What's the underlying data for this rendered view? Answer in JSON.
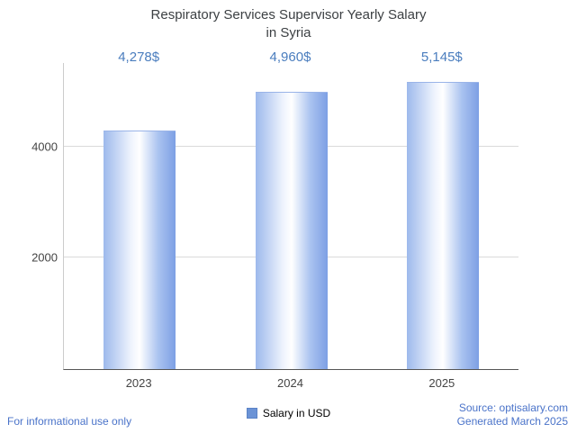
{
  "title": {
    "line1": "Respiratory Services Supervisor Yearly Salary",
    "line2": "in Syria"
  },
  "chart_data": {
    "type": "bar",
    "title": "Respiratory Services Supervisor Yearly Salary in Syria",
    "categories": [
      "2023",
      "2024",
      "2025"
    ],
    "values": [
      4278,
      4960,
      5145
    ],
    "value_labels": [
      "4,278$",
      "4,960$",
      "5,145$"
    ],
    "xlabel": "",
    "ylabel": "",
    "ylim": [
      0,
      5500
    ],
    "yticks": [
      2000,
      4000
    ],
    "grid": true,
    "legend_position": "bottom",
    "legend": [
      "Salary in USD"
    ],
    "bar_gradient": [
      "#9db9ec",
      "#ffffff",
      "#7d9fe4"
    ],
    "value_label_color": "#4a7dbe"
  },
  "legend": {
    "label": "Salary in USD",
    "swatch_color": "#6b93d6"
  },
  "footer": {
    "left": "For informational use only",
    "source": "Source: optisalary.com",
    "generated": "Generated March 2025"
  }
}
